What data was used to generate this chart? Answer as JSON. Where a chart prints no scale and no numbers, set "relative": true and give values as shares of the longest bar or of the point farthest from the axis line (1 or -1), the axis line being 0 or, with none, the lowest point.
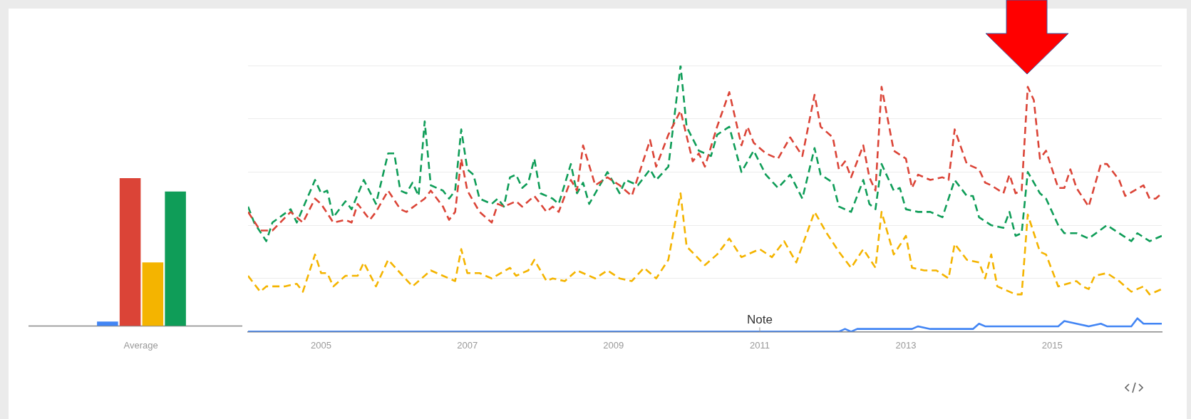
{
  "chart_data": [
    {
      "type": "bar",
      "relative": true,
      "categories": [
        null,
        "Average",
        null,
        null
      ],
      "colors": [
        "#4285f4",
        "#db4437",
        "#f4b400",
        "#0f9d58"
      ],
      "values": [
        0.03,
        1,
        0.43,
        0.91
      ]
    },
    {
      "type": "line",
      "relative": true,
      "grid": "y",
      "xlim": [
        "2004-01",
        "2016-07"
      ],
      "xticks": [
        "2005",
        "2007",
        "2009",
        "2011",
        "2013",
        "2015"
      ],
      "annotations": [
        {
          "text": "Note",
          "x": "2011-01",
          "y": 0
        }
      ],
      "series": [
        {
          "color": "#4285f4",
          "line_style": "solid",
          "x": [
            "2004-01",
            "2012-02",
            "2012-03",
            "2012-04",
            "2012-05",
            "2013-02",
            "2013-03",
            "2013-05",
            "2013-12",
            "2014-01",
            "2014-02",
            "2015-02",
            "2015-03",
            "2015-05",
            "2015-07",
            "2015-09",
            "2015-10",
            "2016-02",
            "2016-03",
            "2016-04",
            "2016-07"
          ],
          "values": [
            0,
            0,
            0.01,
            0,
            0.01,
            0.01,
            0.02,
            0.01,
            0.01,
            0.03,
            0.02,
            0.02,
            0.04,
            0.03,
            0.02,
            0.03,
            0.02,
            0.02,
            0.05,
            0.03,
            0.03
          ]
        },
        {
          "color": "#db4437",
          "line_style": "dashed",
          "x": [
            "2004-01",
            "2004-03",
            "2004-05",
            "2004-08",
            "2004-10",
            "2004-12",
            "2005-01",
            "2005-03",
            "2005-05",
            "2005-06",
            "2005-07",
            "2005-09",
            "2005-10",
            "2005-12",
            "2006-02",
            "2006-03",
            "2006-06",
            "2006-07",
            "2006-09",
            "2006-10",
            "2006-11",
            "2006-12",
            "2007-01",
            "2007-03",
            "2007-05",
            "2007-06",
            "2007-07",
            "2007-09",
            "2007-10",
            "2007-12",
            "2008-02",
            "2008-03",
            "2008-04",
            "2008-06",
            "2008-07",
            "2008-08",
            "2008-10",
            "2008-12",
            "2009-02",
            "2009-04",
            "2009-07",
            "2009-08",
            "2009-10",
            "2009-12",
            "2010-02",
            "2010-03",
            "2010-04",
            "2010-06",
            "2010-08",
            "2010-10",
            "2010-11",
            "2010-12",
            "2011-02",
            "2011-04",
            "2011-06",
            "2011-08",
            "2011-10",
            "2011-11",
            "2012-01",
            "2012-02",
            "2012-03",
            "2012-04",
            "2012-06",
            "2012-07",
            "2012-08",
            "2012-09",
            "2012-11",
            "2013-01",
            "2013-02",
            "2013-03",
            "2013-05",
            "2013-07",
            "2013-08",
            "2013-09",
            "2013-11",
            "2014-01",
            "2014-02",
            "2014-03",
            "2014-05",
            "2014-06",
            "2014-07",
            "2014-08",
            "2014-09",
            "2014-10",
            "2014-11",
            "2014-12",
            "2015-02",
            "2015-03",
            "2015-04",
            "2015-05",
            "2015-07",
            "2015-09",
            "2015-10",
            "2015-12",
            "2016-01",
            "2016-04",
            "2016-05",
            "2016-06",
            "2016-07"
          ],
          "values": [
            0.45,
            0.38,
            0.38,
            0.45,
            0.41,
            0.5,
            0.48,
            0.41,
            0.42,
            0.41,
            0.48,
            0.42,
            0.45,
            0.53,
            0.46,
            0.45,
            0.5,
            0.53,
            0.47,
            0.42,
            0.45,
            0.65,
            0.53,
            0.45,
            0.41,
            0.48,
            0.47,
            0.49,
            0.47,
            0.51,
            0.45,
            0.47,
            0.45,
            0.57,
            0.53,
            0.7,
            0.55,
            0.58,
            0.55,
            0.51,
            0.72,
            0.62,
            0.74,
            0.83,
            0.64,
            0.67,
            0.62,
            0.77,
            0.9,
            0.7,
            0.77,
            0.71,
            0.67,
            0.65,
            0.73,
            0.66,
            0.89,
            0.77,
            0.73,
            0.61,
            0.64,
            0.58,
            0.7,
            0.58,
            0.53,
            0.92,
            0.68,
            0.65,
            0.54,
            0.59,
            0.57,
            0.58,
            0.57,
            0.76,
            0.63,
            0.61,
            0.56,
            0.55,
            0.52,
            0.59,
            0.52,
            0.53,
            0.92,
            0.87,
            0.65,
            0.68,
            0.54,
            0.54,
            0.61,
            0.54,
            0.47,
            0.63,
            0.63,
            0.57,
            0.51,
            0.55,
            0.5,
            0.5,
            0.52
          ]
        },
        {
          "color": "#f4b400",
          "line_style": "dashed",
          "x": [
            "2004-01",
            "2004-03",
            "2004-04",
            "2004-07",
            "2004-09",
            "2004-10",
            "2004-12",
            "2005-01",
            "2005-02",
            "2005-03",
            "2005-05",
            "2005-07",
            "2005-08",
            "2005-10",
            "2005-12",
            "2006-02",
            "2006-04",
            "2006-07",
            "2006-09",
            "2006-11",
            "2006-12",
            "2007-01",
            "2007-03",
            "2007-05",
            "2007-08",
            "2007-09",
            "2007-11",
            "2007-12",
            "2008-02",
            "2008-03",
            "2008-05",
            "2008-07",
            "2008-10",
            "2008-12",
            "2009-02",
            "2009-04",
            "2009-06",
            "2009-08",
            "2009-10",
            "2009-12",
            "2010-01",
            "2010-04",
            "2010-06",
            "2010-08",
            "2010-10",
            "2011-01",
            "2011-03",
            "2011-05",
            "2011-07",
            "2011-10",
            "2011-12",
            "2012-02",
            "2012-04",
            "2012-06",
            "2012-08",
            "2012-09",
            "2012-11",
            "2013-01",
            "2013-02",
            "2013-04",
            "2013-06",
            "2013-08",
            "2013-09",
            "2013-11",
            "2014-01",
            "2014-02",
            "2014-03",
            "2014-04",
            "2014-05",
            "2014-07",
            "2014-08",
            "2014-09",
            "2014-11",
            "2014-12",
            "2015-02",
            "2015-05",
            "2015-06",
            "2015-07",
            "2015-08",
            "2015-10",
            "2015-12",
            "2016-02",
            "2016-04",
            "2016-05",
            "2016-07"
          ],
          "values": [
            0.21,
            0.15,
            0.17,
            0.17,
            0.18,
            0.15,
            0.29,
            0.22,
            0.22,
            0.17,
            0.21,
            0.21,
            0.26,
            0.17,
            0.27,
            0.22,
            0.17,
            0.23,
            0.21,
            0.19,
            0.31,
            0.22,
            0.22,
            0.2,
            0.24,
            0.21,
            0.23,
            0.27,
            0.19,
            0.2,
            0.19,
            0.23,
            0.2,
            0.23,
            0.2,
            0.19,
            0.24,
            0.2,
            0.27,
            0.52,
            0.32,
            0.25,
            0.29,
            0.35,
            0.28,
            0.31,
            0.28,
            0.34,
            0.26,
            0.45,
            0.37,
            0.3,
            0.24,
            0.31,
            0.24,
            0.45,
            0.29,
            0.36,
            0.24,
            0.23,
            0.23,
            0.2,
            0.33,
            0.27,
            0.26,
            0.2,
            0.29,
            0.17,
            0.16,
            0.14,
            0.14,
            0.44,
            0.3,
            0.29,
            0.17,
            0.19,
            0.17,
            0.16,
            0.21,
            0.22,
            0.19,
            0.15,
            0.17,
            0.14,
            0.16
          ]
        },
        {
          "color": "#0f9d58",
          "line_style": "dashed",
          "x": [
            "2004-01",
            "2004-02",
            "2004-04",
            "2004-05",
            "2004-08",
            "2004-09",
            "2004-12",
            "2005-01",
            "2005-02",
            "2005-03",
            "2005-05",
            "2005-06",
            "2005-08",
            "2005-10",
            "2005-12",
            "2006-01",
            "2006-02",
            "2006-03",
            "2006-04",
            "2006-05",
            "2006-06",
            "2006-07",
            "2006-09",
            "2006-10",
            "2006-11",
            "2006-12",
            "2007-01",
            "2007-02",
            "2007-03",
            "2007-05",
            "2007-06",
            "2007-07",
            "2007-08",
            "2007-09",
            "2007-10",
            "2007-11",
            "2007-12",
            "2008-01",
            "2008-03",
            "2008-04",
            "2008-06",
            "2008-07",
            "2008-08",
            "2008-09",
            "2008-12",
            "2009-02",
            "2009-03",
            "2009-05",
            "2009-07",
            "2009-08",
            "2009-10",
            "2009-12",
            "2010-01",
            "2010-03",
            "2010-05",
            "2010-06",
            "2010-08",
            "2010-10",
            "2010-12",
            "2011-02",
            "2011-04",
            "2011-06",
            "2011-08",
            "2011-10",
            "2011-11",
            "2012-01",
            "2012-02",
            "2012-04",
            "2012-06",
            "2012-07",
            "2012-08",
            "2012-09",
            "2012-11",
            "2012-12",
            "2013-01",
            "2013-03",
            "2013-05",
            "2013-07",
            "2013-09",
            "2013-11",
            "2013-12",
            "2014-01",
            "2014-03",
            "2014-05",
            "2014-06",
            "2014-07",
            "2014-08",
            "2014-09",
            "2014-11",
            "2014-12",
            "2015-02",
            "2015-03",
            "2015-05",
            "2015-07",
            "2015-10",
            "2015-12",
            "2016-02",
            "2016-03",
            "2016-05",
            "2016-07"
          ],
          "values": [
            0.47,
            0.41,
            0.34,
            0.41,
            0.46,
            0.41,
            0.57,
            0.52,
            0.53,
            0.43,
            0.49,
            0.46,
            0.57,
            0.48,
            0.67,
            0.67,
            0.53,
            0.52,
            0.56,
            0.51,
            0.79,
            0.55,
            0.53,
            0.5,
            0.53,
            0.76,
            0.61,
            0.59,
            0.5,
            0.48,
            0.5,
            0.47,
            0.58,
            0.59,
            0.54,
            0.56,
            0.65,
            0.52,
            0.5,
            0.48,
            0.63,
            0.52,
            0.56,
            0.48,
            0.6,
            0.52,
            0.57,
            0.55,
            0.61,
            0.57,
            0.62,
            1,
            0.77,
            0.68,
            0.66,
            0.74,
            0.77,
            0.6,
            0.68,
            0.59,
            0.54,
            0.59,
            0.5,
            0.69,
            0.59,
            0.56,
            0.47,
            0.45,
            0.57,
            0.48,
            0.46,
            0.63,
            0.53,
            0.54,
            0.46,
            0.45,
            0.45,
            0.43,
            0.57,
            0.51,
            0.51,
            0.43,
            0.4,
            0.39,
            0.45,
            0.36,
            0.37,
            0.6,
            0.52,
            0.5,
            0.4,
            0.37,
            0.37,
            0.35,
            0.4,
            0.37,
            0.34,
            0.37,
            0.34,
            0.36
          ]
        }
      ]
    }
  ]
}
